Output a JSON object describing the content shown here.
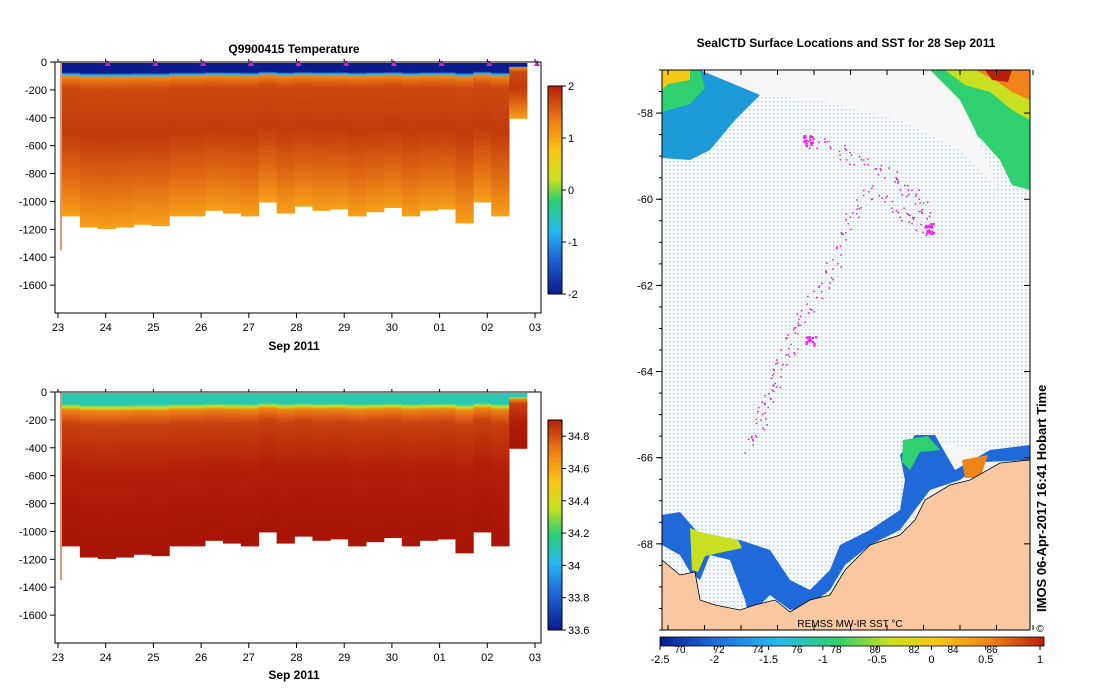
{
  "chart_data": [
    {
      "type": "heatmap",
      "title": "Q9900415  Temperature",
      "xlabel": "Sep 2011",
      "ylabel": "",
      "x_ticks": [
        "23",
        "24",
        "25",
        "26",
        "27",
        "28",
        "29",
        "30",
        "01",
        "02",
        "03"
      ],
      "y_ticks": [
        0,
        -200,
        -400,
        -600,
        -800,
        -1000,
        -1200,
        -1400,
        -1600
      ],
      "ylim": [
        -1800,
        0
      ],
      "colorbar_ticks": [
        "2",
        "1",
        "0",
        "-1",
        "-2"
      ],
      "colorbar_range": [
        -2,
        2
      ],
      "surface_value": -1.8,
      "deep_value": 1.5,
      "profile_max_depth": [
        1100,
        1180,
        1190,
        1180,
        1160,
        1170,
        1100,
        1100,
        1060,
        1080,
        1100,
        1000,
        1080,
        1030,
        1060,
        1050,
        1100,
        1070,
        1040,
        1100,
        1060,
        1050,
        1150,
        1000,
        1100,
        400
      ]
    },
    {
      "type": "heatmap",
      "title": "",
      "xlabel": "Sep 2011",
      "ylabel": "",
      "x_ticks": [
        "23",
        "24",
        "25",
        "26",
        "27",
        "28",
        "29",
        "30",
        "01",
        "02",
        "03"
      ],
      "y_ticks": [
        0,
        -200,
        -400,
        -600,
        -800,
        -1000,
        -1200,
        -1400,
        -1600
      ],
      "ylim": [
        -1800,
        0
      ],
      "colorbar_ticks": [
        "34.8",
        "34.6",
        "34.4",
        "34.2",
        "34",
        "33.8",
        "33.6"
      ],
      "colorbar_range": [
        33.6,
        34.9
      ],
      "surface_value": 34.0,
      "deep_value": 34.75,
      "profile_max_depth": [
        1100,
        1180,
        1190,
        1180,
        1160,
        1170,
        1100,
        1100,
        1060,
        1080,
        1100,
        1000,
        1080,
        1030,
        1060,
        1050,
        1100,
        1070,
        1040,
        1100,
        1060,
        1050,
        1150,
        1000,
        1100,
        400
      ]
    },
    {
      "type": "scatter",
      "title": "SealCTD Surface Locations and SST for 28 Sep 2011",
      "xlabel": "",
      "ylabel": "",
      "y_ticks": [
        "-58",
        "-60",
        "-62",
        "-64",
        "-66",
        "-68"
      ],
      "ylim": [
        -70,
        -57
      ],
      "colorbar_ticks": [
        "-2.5",
        "-2",
        "-1.5",
        "-1",
        "-0.5",
        "0",
        "0.5",
        "1"
      ],
      "colorbar_range": [
        -2.5,
        1
      ],
      "colorbar_overlay_labels": [
        "70",
        "72",
        "74",
        "76",
        "78",
        "80",
        "82",
        "84",
        "86"
      ],
      "annotation": "REMSS MW-IR SST °C",
      "stamp": "IMOS 06-Apr-2017 16:41 Hobart Time",
      "copyright": "©",
      "track_color": "#cc22cc",
      "land_color": "#f9c8a0",
      "ice_color": "#f6f6f6"
    }
  ]
}
